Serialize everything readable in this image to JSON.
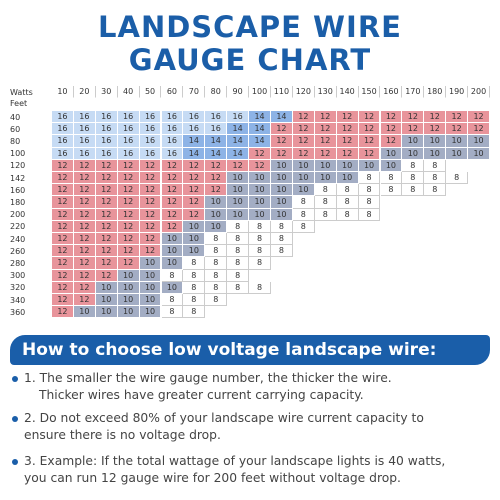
{
  "title_lines": [
    "LANDSCAPE WIRE",
    "GAUGE CHART"
  ],
  "table": {
    "watts_label": "Watts",
    "feet_label": "Feet",
    "watts": [
      10,
      20,
      30,
      40,
      50,
      60,
      70,
      80,
      90,
      100,
      110,
      120,
      130,
      140,
      150,
      160,
      170,
      180,
      190,
      200
    ],
    "gauge_colors": {
      "16": "#c6dbf4",
      "14": "#8db3e6",
      "12": "#e8949b",
      "10": "#a3adc4",
      "8": "#ffffff"
    },
    "rows": [
      {
        "feet": 40,
        "values": [
          16,
          16,
          16,
          16,
          16,
          16,
          16,
          16,
          16,
          14,
          14,
          12,
          12,
          12,
          12,
          12,
          12,
          12,
          12,
          12
        ]
      },
      {
        "feet": 60,
        "values": [
          16,
          16,
          16,
          16,
          16,
          16,
          16,
          16,
          14,
          14,
          12,
          12,
          12,
          12,
          12,
          12,
          12,
          12,
          12,
          12
        ]
      },
      {
        "feet": 80,
        "values": [
          16,
          16,
          16,
          16,
          16,
          16,
          14,
          14,
          14,
          14,
          12,
          12,
          12,
          12,
          12,
          12,
          10,
          10,
          10,
          10
        ]
      },
      {
        "feet": 100,
        "values": [
          16,
          16,
          16,
          16,
          16,
          16,
          14,
          14,
          14,
          12,
          12,
          12,
          12,
          12,
          12,
          10,
          10,
          10,
          10,
          10
        ]
      },
      {
        "feet": 120,
        "values": [
          12,
          12,
          12,
          12,
          12,
          12,
          12,
          12,
          12,
          12,
          10,
          10,
          10,
          10,
          10,
          10,
          8,
          8
        ]
      },
      {
        "feet": 142,
        "values": [
          12,
          12,
          12,
          12,
          12,
          12,
          12,
          12,
          10,
          10,
          10,
          10,
          10,
          10,
          8,
          8,
          8,
          8,
          8
        ]
      },
      {
        "feet": 160,
        "values": [
          12,
          12,
          12,
          12,
          12,
          12,
          12,
          12,
          10,
          10,
          10,
          10,
          8,
          8,
          8,
          8,
          8,
          8
        ]
      },
      {
        "feet": 180,
        "values": [
          12,
          12,
          12,
          12,
          12,
          12,
          12,
          10,
          10,
          10,
          10,
          8,
          8,
          8,
          8
        ]
      },
      {
        "feet": 200,
        "values": [
          12,
          12,
          12,
          12,
          12,
          12,
          12,
          10,
          10,
          10,
          10,
          8,
          8,
          8,
          8
        ]
      },
      {
        "feet": 220,
        "values": [
          12,
          12,
          12,
          12,
          12,
          12,
          10,
          10,
          8,
          8,
          8,
          8
        ]
      },
      {
        "feet": 240,
        "values": [
          12,
          12,
          12,
          12,
          12,
          10,
          10,
          8,
          8,
          8,
          8
        ]
      },
      {
        "feet": 260,
        "values": [
          12,
          12,
          12,
          12,
          12,
          10,
          10,
          8,
          8,
          8,
          8
        ]
      },
      {
        "feet": 280,
        "values": [
          12,
          12,
          12,
          12,
          10,
          10,
          8,
          8,
          8,
          8
        ]
      },
      {
        "feet": 300,
        "values": [
          12,
          12,
          12,
          10,
          10,
          8,
          8,
          8,
          8
        ]
      },
      {
        "feet": 320,
        "values": [
          12,
          12,
          10,
          10,
          10,
          10,
          8,
          8,
          8,
          8
        ]
      },
      {
        "feet": 340,
        "values": [
          12,
          12,
          10,
          10,
          10,
          8,
          8,
          8
        ]
      },
      {
        "feet": 360,
        "values": [
          12,
          10,
          10,
          10,
          10,
          8,
          8
        ]
      }
    ]
  },
  "section_title": "How to choose low voltage landscape wire:",
  "bullets": [
    [
      "1. The smaller the wire gauge number, the thicker the wire.",
      "Thicker wires have greater current carrying capacity."
    ],
    [
      "2. Do not exceed 80% of your landscape wire current capacity to",
      "ensure there is no voltage drop."
    ],
    [
      "3. Example: If the total wattage of your landscape lights is 40 watts,",
      "you can run 12 gauge wire for 200 feet without voltage drop."
    ]
  ]
}
